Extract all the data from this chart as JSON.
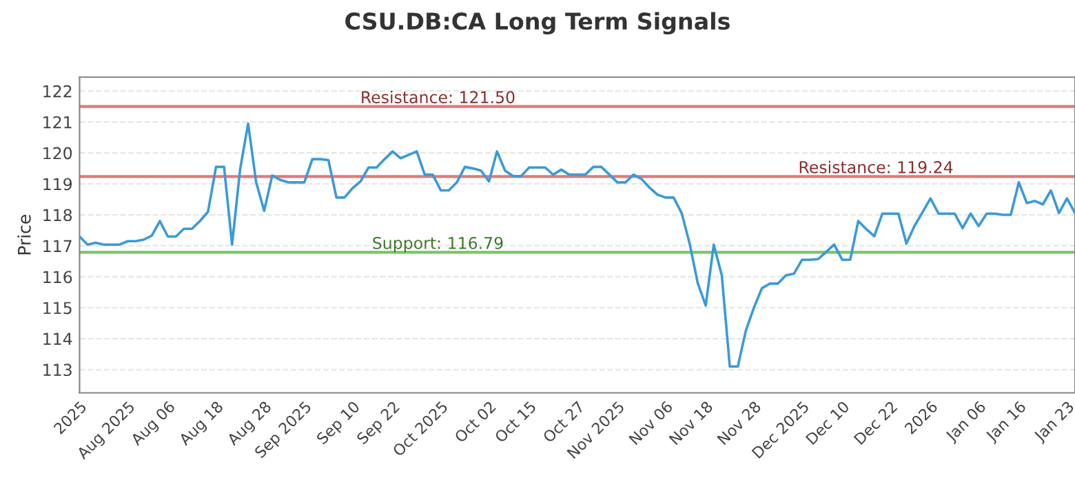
{
  "chart_data": {
    "type": "line",
    "title": "CSU.DB:CA Long Term Signals",
    "ylabel": "Price",
    "categories": [
      "2025",
      null,
      null,
      null,
      null,
      null,
      "Aug 2025",
      null,
      null,
      null,
      null,
      "Aug 06",
      null,
      null,
      null,
      null,
      null,
      "Aug 18",
      null,
      null,
      null,
      null,
      null,
      "Aug 28",
      null,
      null,
      null,
      null,
      "Sep 2025",
      null,
      null,
      null,
      null,
      null,
      "Sep 10",
      null,
      null,
      null,
      null,
      "Sep 22",
      null,
      null,
      null,
      null,
      null,
      "Oct 2025",
      null,
      null,
      null,
      null,
      null,
      "Oct 02",
      null,
      null,
      null,
      null,
      "Oct 15",
      null,
      null,
      null,
      null,
      null,
      "Oct 27",
      null,
      null,
      null,
      null,
      "Nov 2025",
      null,
      null,
      null,
      null,
      null,
      "Nov 06",
      null,
      null,
      null,
      null,
      "Nov 18",
      null,
      null,
      null,
      null,
      null,
      "Nov 28",
      null,
      null,
      null,
      null,
      null,
      "Dec 2025",
      null,
      null,
      null,
      null,
      "Dec 10",
      null,
      null,
      null,
      null,
      null,
      "Dec 22",
      null,
      null,
      null,
      null,
      "2026",
      null,
      null,
      null,
      null,
      null,
      "Jan 06",
      null,
      null,
      null,
      null,
      "Jan 16",
      null,
      null,
      null,
      null,
      null,
      "Jan 23",
      null
    ],
    "series": [
      {
        "color": "#3a9ad9",
        "values": [
          117.3,
          117.04,
          117.1,
          117.04,
          117.04,
          117.04,
          117.15,
          117.15,
          117.2,
          117.33,
          117.8,
          117.3,
          117.3,
          117.55,
          117.55,
          117.8,
          118.1,
          119.55,
          119.55,
          117.04,
          119.47,
          120.95,
          119.05,
          118.13,
          119.27,
          119.13,
          119.05,
          119.05,
          119.05,
          119.8,
          119.8,
          119.77,
          118.56,
          118.56,
          118.86,
          119.08,
          119.53,
          119.53,
          119.8,
          120.05,
          119.83,
          119.94,
          120.05,
          119.3,
          119.3,
          118.79,
          118.79,
          119.05,
          119.55,
          119.5,
          119.43,
          119.08,
          120.05,
          119.43,
          119.25,
          119.25,
          119.53,
          119.53,
          119.53,
          119.3,
          119.46,
          119.3,
          119.3,
          119.3,
          119.55,
          119.55,
          119.3,
          119.05,
          119.05,
          119.3,
          119.16,
          118.88,
          118.65,
          118.56,
          118.56,
          118.06,
          117.07,
          115.8,
          115.07,
          117.04,
          116.05,
          113.1,
          113.1,
          114.26,
          115.0,
          115.63,
          115.78,
          115.78,
          116.05,
          116.1,
          116.55,
          116.55,
          116.57,
          116.8,
          117.04,
          116.55,
          116.55,
          117.8,
          117.54,
          117.31,
          118.04,
          118.04,
          118.04,
          117.07,
          117.64,
          118.08,
          118.53,
          118.04,
          118.04,
          118.04,
          117.57,
          118.04,
          117.64,
          118.04,
          118.04,
          118.0,
          118.0,
          119.05,
          118.38,
          118.45,
          118.34,
          118.79,
          118.06,
          118.53,
          118.06
        ]
      }
    ],
    "ylim": [
      112.25,
      122.45
    ],
    "yticks": [
      113,
      114,
      115,
      116,
      117,
      118,
      119,
      120,
      121,
      122
    ],
    "grid": "y",
    "ref_lines": [
      {
        "axis": "y",
        "value": 121.5,
        "label": "Resistance: 121.50",
        "color": "#e07a7a"
      },
      {
        "axis": "y",
        "value": 119.24,
        "label": "Resistance: 119.24",
        "color": "#e07a7a"
      },
      {
        "axis": "y",
        "value": 116.79,
        "label": "Support: 116.79",
        "color": "#7cc36a"
      }
    ]
  }
}
